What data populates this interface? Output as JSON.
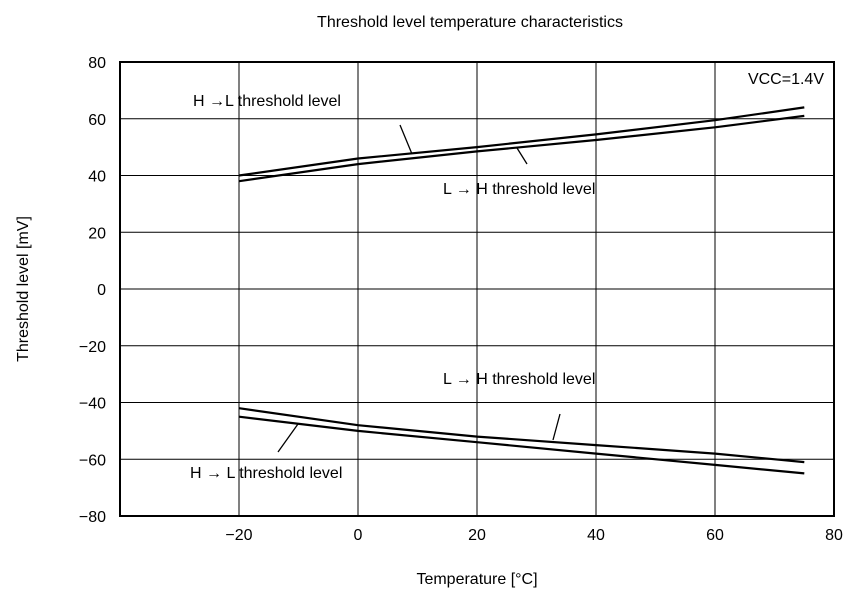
{
  "chart_data": {
    "type": "line",
    "title": "Threshold level temperature characteristics",
    "xlabel": "Temperature [°C]",
    "ylabel": "Threshold level [mV]",
    "xlim": [
      -40,
      80
    ],
    "ylim": [
      -80,
      80
    ],
    "x_ticks": [
      -20,
      0,
      20,
      40,
      60,
      80
    ],
    "y_ticks": [
      80,
      60,
      40,
      20,
      0,
      -20,
      -40,
      -60,
      -80
    ],
    "x_tick_labels": [
      "−20",
      "0",
      "20",
      "40",
      "60",
      "80"
    ],
    "y_tick_labels": [
      "80",
      "60",
      "40",
      "20",
      "0",
      "−20",
      "−40",
      "−60",
      "−80"
    ],
    "grid": true,
    "condition_label": "VCC=1.4V",
    "series": [
      {
        "name": "H →L threshold level",
        "x": [
          -20,
          0,
          20,
          40,
          60,
          75
        ],
        "y": [
          40,
          46,
          50,
          54.5,
          59.5,
          64
        ]
      },
      {
        "name": "L → H threshold level",
        "x": [
          -20,
          0,
          20,
          40,
          60,
          75
        ],
        "y": [
          38,
          44,
          48.5,
          52.5,
          57,
          61
        ]
      },
      {
        "name": "L → H threshold level",
        "x": [
          -20,
          0,
          20,
          40,
          60,
          75
        ],
        "y": [
          -42,
          -48,
          -52,
          -55,
          -58,
          -61
        ]
      },
      {
        "name": "H → L threshold level",
        "x": [
          -20,
          0,
          20,
          40,
          60,
          75
        ],
        "y": [
          -45,
          -50,
          -54,
          -58,
          -62,
          -65
        ]
      }
    ]
  }
}
